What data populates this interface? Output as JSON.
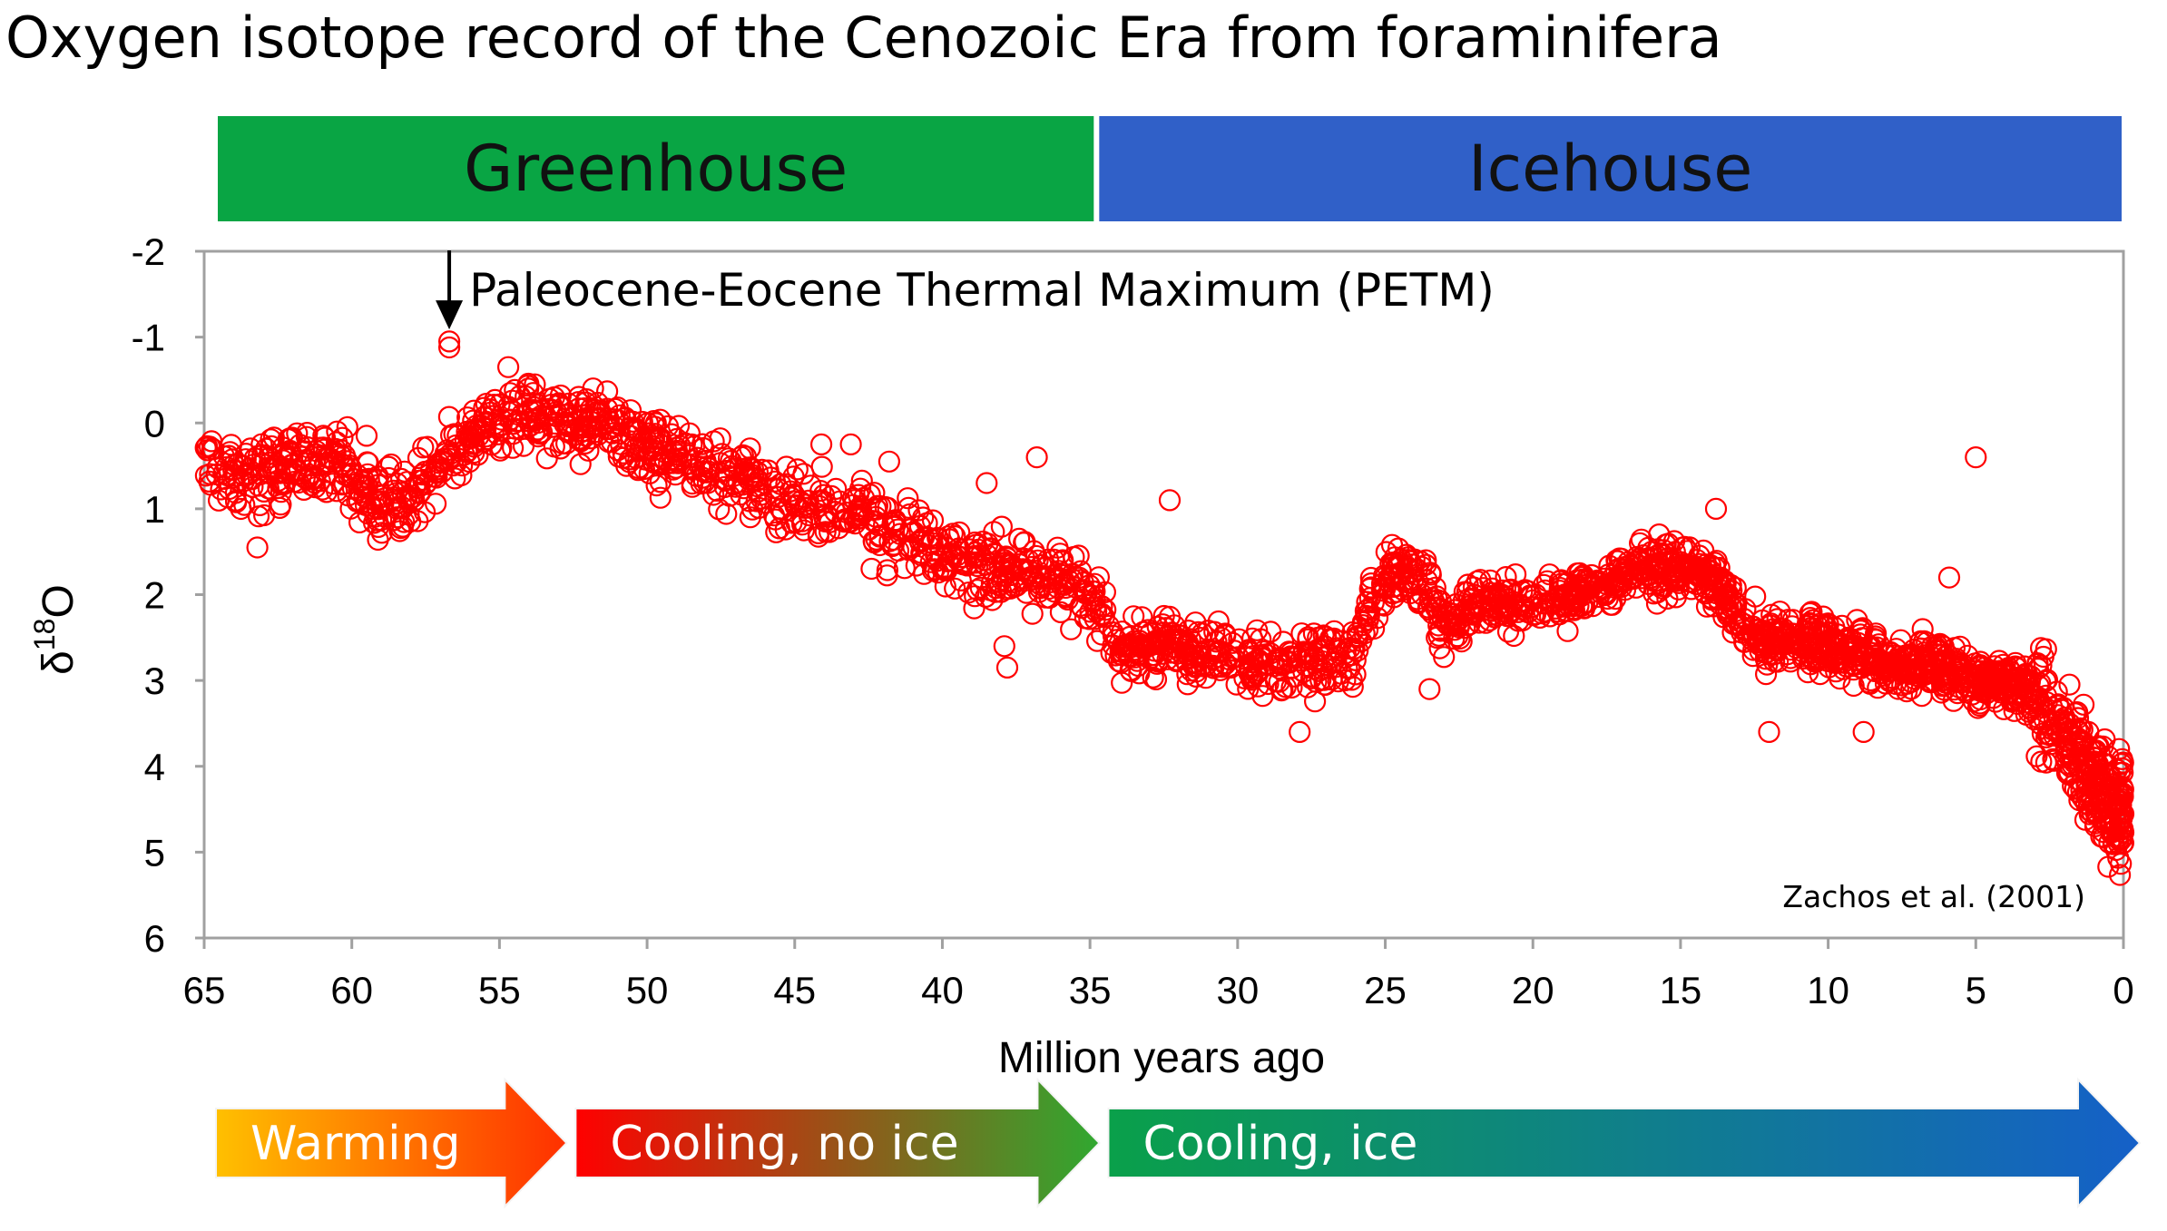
{
  "title": "Oxygen isotope record of the Cenozoic Era from foraminifera",
  "colors": {
    "points": "#ff0000",
    "greenhouse": "#09a544",
    "icehouse": "#3060c8",
    "axis": "#888888"
  },
  "eras": [
    {
      "label": "Greenhouse",
      "from": 65,
      "to": 35,
      "color": "#09a544"
    },
    {
      "label": "Icehouse",
      "from": 35,
      "to": 0,
      "color": "#3060c8"
    }
  ],
  "trends": [
    {
      "label": "Warming",
      "from": 65,
      "to": 53,
      "colors": [
        "#ffc000",
        "#ff3000"
      ]
    },
    {
      "label": "Cooling, no ice",
      "from": 53,
      "to": 35,
      "colors": [
        "#ff0000",
        "#30a830"
      ]
    },
    {
      "label": "Cooling, ice",
      "from": 35,
      "to": 0,
      "colors": [
        "#0aa04a",
        "#1560c8"
      ]
    }
  ],
  "annotation": {
    "label": "Paleocene-Eocene Thermal Maximum (PETM)",
    "x": 56.7,
    "y": -0.9
  },
  "credit": "Zachos et al. (2001)",
  "chart_data": {
    "type": "scatter",
    "title": "Oxygen isotope record of the Cenozoic Era from foraminifera",
    "xlabel": "Million years ago",
    "ylabel_main": "δ",
    "ylabel_sup": "18",
    "ylabel_tail": "O",
    "xlim": [
      65,
      0
    ],
    "ylim": [
      -2,
      6
    ],
    "y_inverted": true,
    "x_ticks": [
      65,
      60,
      55,
      50,
      45,
      40,
      35,
      30,
      25,
      20,
      15,
      10,
      5,
      0
    ],
    "y_ticks": [
      -2,
      -1,
      0,
      1,
      2,
      3,
      4,
      5,
      6
    ],
    "grid": false,
    "marker": "open-circle",
    "series": [
      {
        "name": "",
        "trend": [
          [
            65,
            0.5
          ],
          [
            63.5,
            0.6
          ],
          [
            62,
            0.5
          ],
          [
            60.5,
            0.5
          ],
          [
            59,
            1.0
          ],
          [
            58,
            0.9
          ],
          [
            57,
            0.5
          ],
          [
            56,
            0.2
          ],
          [
            55,
            0.0
          ],
          [
            54,
            -0.1
          ],
          [
            53,
            0.0
          ],
          [
            52,
            0.0
          ],
          [
            51,
            0.1
          ],
          [
            50,
            0.3
          ],
          [
            49,
            0.4
          ],
          [
            48,
            0.5
          ],
          [
            46,
            0.8
          ],
          [
            45,
            1.0
          ],
          [
            44,
            1.0
          ],
          [
            42,
            1.2
          ],
          [
            40,
            1.5
          ],
          [
            38,
            1.7
          ],
          [
            36,
            1.8
          ],
          [
            35,
            2.0
          ],
          [
            34,
            2.7
          ],
          [
            33,
            2.6
          ],
          [
            31,
            2.7
          ],
          [
            29,
            2.8
          ],
          [
            27,
            2.8
          ],
          [
            26,
            2.7
          ],
          [
            25.5,
            2.0
          ],
          [
            24.5,
            1.7
          ],
          [
            23.5,
            1.9
          ],
          [
            23,
            2.4
          ],
          [
            22,
            2.1
          ],
          [
            20,
            2.1
          ],
          [
            18,
            2.0
          ],
          [
            16.5,
            1.7
          ],
          [
            15,
            1.7
          ],
          [
            14,
            1.8
          ],
          [
            13,
            2.3
          ],
          [
            12,
            2.5
          ],
          [
            10,
            2.6
          ],
          [
            8,
            2.8
          ],
          [
            6,
            2.8
          ],
          [
            5,
            3.0
          ],
          [
            4,
            3.0
          ],
          [
            3,
            3.2
          ],
          [
            2,
            3.6
          ],
          [
            1,
            4.2
          ],
          [
            0,
            4.6
          ]
        ],
        "outliers": [
          [
            56.7,
            -0.95
          ],
          [
            56.7,
            -0.88
          ],
          [
            59.5,
            0.15
          ],
          [
            60.5,
            0.1
          ],
          [
            63.2,
            1.45
          ],
          [
            41.8,
            0.45
          ],
          [
            38.5,
            0.7
          ],
          [
            37.9,
            2.6
          ],
          [
            37.8,
            2.85
          ],
          [
            36.8,
            0.4
          ],
          [
            27.9,
            3.6
          ],
          [
            23.5,
            3.1
          ],
          [
            13.8,
            1.0
          ],
          [
            12.0,
            3.6
          ],
          [
            8.8,
            3.6
          ],
          [
            5.0,
            0.4
          ],
          [
            5.9,
            1.8
          ],
          [
            54.7,
            -0.65
          ],
          [
            53.8,
            -0.45
          ],
          [
            32.3,
            0.9
          ],
          [
            50.7,
            0.5
          ],
          [
            62.9,
            0.3
          ],
          [
            44.1,
            0.25
          ],
          [
            43.1,
            0.25
          ]
        ]
      }
    ]
  }
}
